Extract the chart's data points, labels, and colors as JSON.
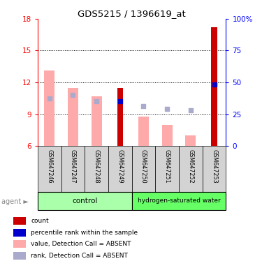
{
  "title": "GDS5215 / 1396619_at",
  "samples": [
    "GSM647246",
    "GSM647247",
    "GSM647248",
    "GSM647249",
    "GSM647250",
    "GSM647251",
    "GSM647252",
    "GSM647253"
  ],
  "value_absent": [
    13.1,
    11.5,
    10.7,
    null,
    8.8,
    8.0,
    7.0,
    null
  ],
  "rank_absent": [
    10.5,
    10.8,
    10.2,
    null,
    9.8,
    9.5,
    9.4,
    null
  ],
  "count_present": [
    null,
    null,
    null,
    11.5,
    null,
    null,
    null,
    17.2
  ],
  "rank_present": [
    null,
    null,
    null,
    10.2,
    null,
    null,
    null,
    11.8
  ],
  "ylim_left": [
    6,
    18
  ],
  "ylim_right": [
    0,
    100
  ],
  "yticks_left": [
    6,
    9,
    12,
    15,
    18
  ],
  "yticks_right": [
    0,
    25,
    50,
    75,
    100
  ],
  "yticklabels_right": [
    "0",
    "25",
    "50",
    "75",
    "100%"
  ],
  "color_count": "#cc0000",
  "color_rank_present": "#0000cc",
  "color_value_absent": "#ffaaaa",
  "color_rank_absent": "#aaaacc",
  "color_control": "#aaffaa",
  "color_hydrogen": "#66ff66",
  "color_sample_bg": "#d3d3d3",
  "bar_width": 0.45
}
